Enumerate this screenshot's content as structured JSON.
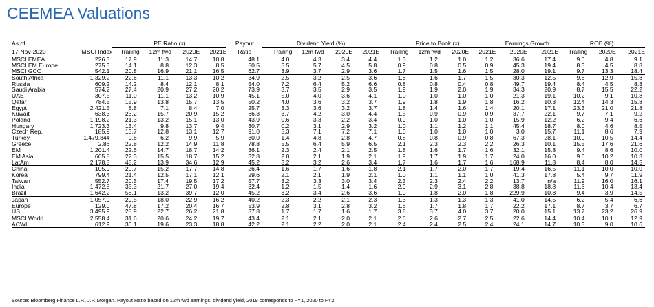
{
  "title": "CEEMEA Valuations",
  "header": {
    "as_of": "As of",
    "date": "17-Nov-2020",
    "msci_index": "MSCI Index",
    "groups": [
      "PE Ratio (x)",
      "Payout",
      "Dividend Yield (%)",
      "Price to Book (x)",
      "Earnings Growth",
      "ROE (%)"
    ],
    "payout_sub": "Ratio",
    "subcols": {
      "pe": [
        "Trailing",
        "12m fwd",
        "2020E",
        "2021E"
      ],
      "dy": [
        "Trailing",
        "12m fwd",
        "2020E",
        "2021E"
      ],
      "pb": [
        "Trailing",
        "12m fwd",
        "2020E",
        "2021E"
      ],
      "eg": [
        "2020E",
        "2021E"
      ],
      "roe": [
        "Trailing",
        "2020E",
        "2021E"
      ]
    }
  },
  "groups": [
    [
      {
        "name": "MSCI EMEA",
        "idx": "226.3",
        "v": [
          "17.9",
          "11.3",
          "14.7",
          "10.8",
          "48.1",
          "4.0",
          "4.3",
          "3.4",
          "4.4",
          "1.3",
          "1.2",
          "1.0",
          "1.2",
          "36.6",
          "17.4",
          "9.0",
          "4.8",
          "9.1"
        ]
      },
      {
        "name": "MSCI EM Europe",
        "idx": "275.3",
        "v": [
          "14.1",
          "8.8",
          "12.3",
          "8.5",
          "50.5",
          "5.5",
          "5.7",
          "4.5",
          "5.8",
          "0.9",
          "0.8",
          "0.5",
          "0.9",
          "45.3",
          "19.4",
          "8.3",
          "4.5",
          "8.8"
        ]
      },
      {
        "name": "MSCI GCC",
        "idx": "542.1",
        "v": [
          "20.8",
          "16.9",
          "21.1",
          "16.5",
          "62.7",
          "3.9",
          "3.7",
          "2.9",
          "3.6",
          "1.7",
          "1.5",
          "1.6",
          "1.5",
          "28.0",
          "19.1",
          "9.7",
          "13.3",
          "18.4"
        ]
      }
    ],
    [
      {
        "name": "South Africa",
        "idx": "1,329.2",
        "v": [
          "22.6",
          "11.1",
          "13.3",
          "10.2",
          "34.9",
          "2.5",
          "3.2",
          "2.5",
          "3.6",
          "1.8",
          "1.6",
          "1.7",
          "1.5",
          "30.3",
          "12.5",
          "9.8",
          "12.9",
          "15.8"
        ]
      },
      {
        "name": "Russia",
        "idx": "609.2",
        "v": [
          "14.2",
          "8.4",
          "12.1",
          "8.1",
          "54.0",
          "7.2",
          "6.4",
          "5.2",
          "6.6",
          "0.8",
          "0.8",
          "0.4",
          "0.8",
          "49.7",
          "19.4",
          "8.4",
          "4.5",
          "8.8"
        ]
      },
      {
        "name": "Saudi Arabia",
        "idx": "574.2",
        "v": [
          "27.4",
          "20.9",
          "27.2",
          "20.2",
          "73.9",
          "3.7",
          "3.5",
          "2.9",
          "3.5",
          "1.9",
          "1.9",
          "2.0",
          "1.9",
          "34.3",
          "20.9",
          "8.7",
          "15.5",
          "22.2"
        ]
      },
      {
        "name": "UAE",
        "idx": "307.5",
        "v": [
          "11.0",
          "11.1",
          "13.2",
          "10.9",
          "45.1",
          "5.0",
          "4.0",
          "3.6",
          "4.1",
          "1.0",
          "1.0",
          "1.0",
          "1.0",
          "21.3",
          "19.1",
          "10.2",
          "9.1",
          "10.8"
        ]
      },
      {
        "name": "Qatar",
        "idx": "784.5",
        "v": [
          "15.9",
          "13.8",
          "15.7",
          "13.5",
          "50.2",
          "4.0",
          "3.6",
          "3.2",
          "3.7",
          "1.9",
          "1.8",
          "1.9",
          "1.8",
          "16.2",
          "10.3",
          "12.4",
          "14.3",
          "15.8"
        ]
      },
      {
        "name": "Egypt",
        "idx": "2,421.5",
        "v": [
          "8.8",
          "7.1",
          "8.4",
          "7.0",
          "25.7",
          "3.3",
          "3.6",
          "3.2",
          "3.7",
          "1.8",
          "1.4",
          "1.6",
          "1.4",
          "20.1",
          "17.1",
          "23.3",
          "21.0",
          "21.8"
        ]
      },
      {
        "name": "Kuwait",
        "idx": "638.3",
        "v": [
          "23.2",
          "15.7",
          "20.9",
          "15.2",
          "66.3",
          "3.7",
          "4.2",
          "3.0",
          "4.4",
          "1.5",
          "0.9",
          "0.9",
          "0.9",
          "37.7",
          "22.1",
          "9.7",
          "7.1",
          "9.2"
        ]
      },
      {
        "name": "Poland",
        "idx": "1,198.2",
        "v": [
          "21.3",
          "13.2",
          "15.1",
          "13.0",
          "43.9",
          "0.6",
          "3.3",
          "2.2",
          "3.4",
          "0.9",
          "1.0",
          "1.0",
          "1.0",
          "15.9",
          "12.2",
          "6.2",
          "9.4",
          "6.6"
        ]
      },
      {
        "name": "Hungary",
        "idx": "1,723.3",
        "v": [
          "13.4",
          "9.8",
          "13.7",
          "9.4",
          "30.7",
          "0.2",
          "3.1",
          "2.9",
          "3.2",
          "1.0",
          "1.1",
          "1.2",
          "1.1",
          "45.4",
          "18.7",
          "8.0",
          "4.6",
          "8.5"
        ]
      },
      {
        "name": "Czech Rep.",
        "idx": "185.9",
        "v": [
          "13.7",
          "12.8",
          "13.1",
          "12.7",
          "91.0",
          "5.3",
          "7.1",
          "7.2",
          "7.1",
          "1.0",
          "1.0",
          "1.0",
          "1.0",
          "3.0",
          "15.7",
          "11.1",
          "8.6",
          "7.9"
        ]
      },
      {
        "name": "Turkey",
        "idx": "1,479,844",
        "v": [
          "9.6",
          "6.2",
          "9.9",
          "5.9",
          "30.0",
          "1.4",
          "4.8",
          "2.8",
          "4.7",
          "0.8",
          "0.8",
          "0.9",
          "0.8",
          "67.3",
          "28.1",
          "10.0",
          "10.5",
          "14.4"
        ]
      },
      {
        "name": "Greece",
        "idx": "2.86",
        "v": [
          "22.8",
          "12.2",
          "14.9",
          "11.8",
          "78.8",
          "5.5",
          "6.4",
          "5.9",
          "6.5",
          "2.1",
          "2.3",
          "2.3",
          "2.2",
          "26.3",
          "10.1",
          "15.5",
          "17.6",
          "21.6"
        ]
      }
    ],
    [
      {
        "name": "EM",
        "idx": "1,201.4",
        "v": [
          "22.6",
          "14.7",
          "18.7",
          "14.2",
          "36.1",
          "2.3",
          "2.4",
          "2.1",
          "2.5",
          "1.8",
          "1.6",
          "1.7",
          "1.6",
          "32.1",
          "15.8",
          "9.4",
          "8.6",
          "10.0"
        ]
      },
      {
        "name": "EM Asia",
        "idx": "665.8",
        "v": [
          "22.3",
          "15.5",
          "18.7",
          "15.2",
          "32.8",
          "2.0",
          "2.1",
          "1.9",
          "2.1",
          "1.9",
          "1.7",
          "1.9",
          "1.7",
          "24.0",
          "16.0",
          "9.6",
          "10.2",
          "10.3"
        ]
      },
      {
        "name": "LatAm",
        "idx": "2,178.8",
        "v": [
          "48.2",
          "13.9",
          "34.6",
          "12.9",
          "45.2",
          "3.2",
          "3.2",
          "2.6",
          "3.4",
          "1.7",
          "1.6",
          "1.7",
          "1.6",
          "168.9",
          "11.8",
          "8.4",
          "8.0",
          "14.5"
        ]
      }
    ],
    [
      {
        "name": "China",
        "idx": "105.9",
        "v": [
          "20.7",
          "15.2",
          "17.7",
          "14.8",
          "26.4",
          "1.6",
          "1.7",
          "1.6",
          "1.8",
          "2.1",
          "1.7",
          "2.0",
          "1.7",
          "19.4",
          "16.5",
          "11.1",
          "10.0",
          "10.0"
        ]
      },
      {
        "name": "Korea",
        "idx": "799.4",
        "v": [
          "21.4",
          "12.5",
          "17.1",
          "12.1",
          "29.6",
          "2.1",
          "2.1",
          "1.9",
          "2.1",
          "1.0",
          "1.1",
          "1.1",
          "1.0",
          "41.3",
          "17.8",
          "5.4",
          "9.7",
          "11.9"
        ]
      },
      {
        "name": "Taiwan",
        "idx": "552.7",
        "v": [
          "20.5",
          "17.4",
          "19.5",
          "17.2",
          "57.7",
          "3.2",
          "3.3",
          "3.0",
          "3.4",
          "2.3",
          "2.3",
          "2.4",
          "2.2",
          "13.7",
          "n/a",
          "11.9",
          "16.0",
          "16.1"
        ]
      },
      {
        "name": "India",
        "idx": "1,472.8",
        "v": [
          "35.3",
          "21.7",
          "27.0",
          "19.4",
          "32.4",
          "1.2",
          "1.5",
          "1.4",
          "1.6",
          "2.9",
          "2.9",
          "3.1",
          "2.8",
          "38.8",
          "18.8",
          "11.6",
          "10.4",
          "13.4"
        ]
      },
      {
        "name": "Brazil",
        "idx": "1,642.2",
        "v": [
          "58.1",
          "13.2",
          "39.7",
          "12.0",
          "45.2",
          "3.2",
          "3.4",
          "2.6",
          "3.6",
          "1.9",
          "1.8",
          "2.0",
          "1.8",
          "229.9",
          "10.8",
          "9.4",
          "3.9",
          "14.5"
        ]
      }
    ],
    [
      {
        "name": "Japan",
        "idx": "1,057.9",
        "v": [
          "29.5",
          "18.0",
          "22.9",
          "16.2",
          "40.2",
          "2.3",
          "2.2",
          "2.1",
          "2.3",
          "1.3",
          "1.3",
          "1.3",
          "1.3",
          "41.0",
          "14.5",
          "6.2",
          "5.4",
          "6.6"
        ]
      },
      {
        "name": "Europe",
        "idx": "129.0",
        "v": [
          "47.8",
          "17.2",
          "20.4",
          "16.7",
          "53.9",
          "2.8",
          "3.1",
          "2.8",
          "3.2",
          "1.6",
          "1.7",
          "1.8",
          "1.7",
          "22.2",
          "17.1",
          "8.7",
          "3.7",
          "6.7"
        ]
      },
      {
        "name": "US",
        "idx": "3,495.9",
        "v": [
          "28.9",
          "22.7",
          "26.2",
          "21.8",
          "37.8",
          "1.7",
          "1.7",
          "1.6",
          "1.7",
          "3.8",
          "3.7",
          "4.0",
          "3.7",
          "20.0",
          "15.1",
          "13.7",
          "23.2",
          "26.9"
        ]
      }
    ],
    [
      {
        "name": "MSCI World",
        "idx": "2,558.4",
        "v": [
          "31.6",
          "20.6",
          "24.2",
          "19.7",
          "43.4",
          "2.1",
          "2.1",
          "2.0",
          "2.1",
          "2.6",
          "2.6",
          "2.7",
          "2.5",
          "22.6",
          "14.4",
          "10.4",
          "10.1",
          "12.9"
        ]
      },
      {
        "name": "ACWI",
        "idx": "612.9",
        "v": [
          "30.1",
          "19.6",
          "23.3",
          "18.8",
          "42.2",
          "2.1",
          "2.2",
          "2.0",
          "2.1",
          "2.4",
          "2.4",
          "2.5",
          "2.4",
          "24.1",
          "14.7",
          "10.3",
          "9.0",
          "10.6"
        ]
      }
    ]
  ],
  "source": "Source: Bloomberg Finance L.P., J.P. Morgan. Payout Ratio based on 12m fwd earnings, dividend yield, 2019 corresponds to FY1, 2020 to FY2."
}
